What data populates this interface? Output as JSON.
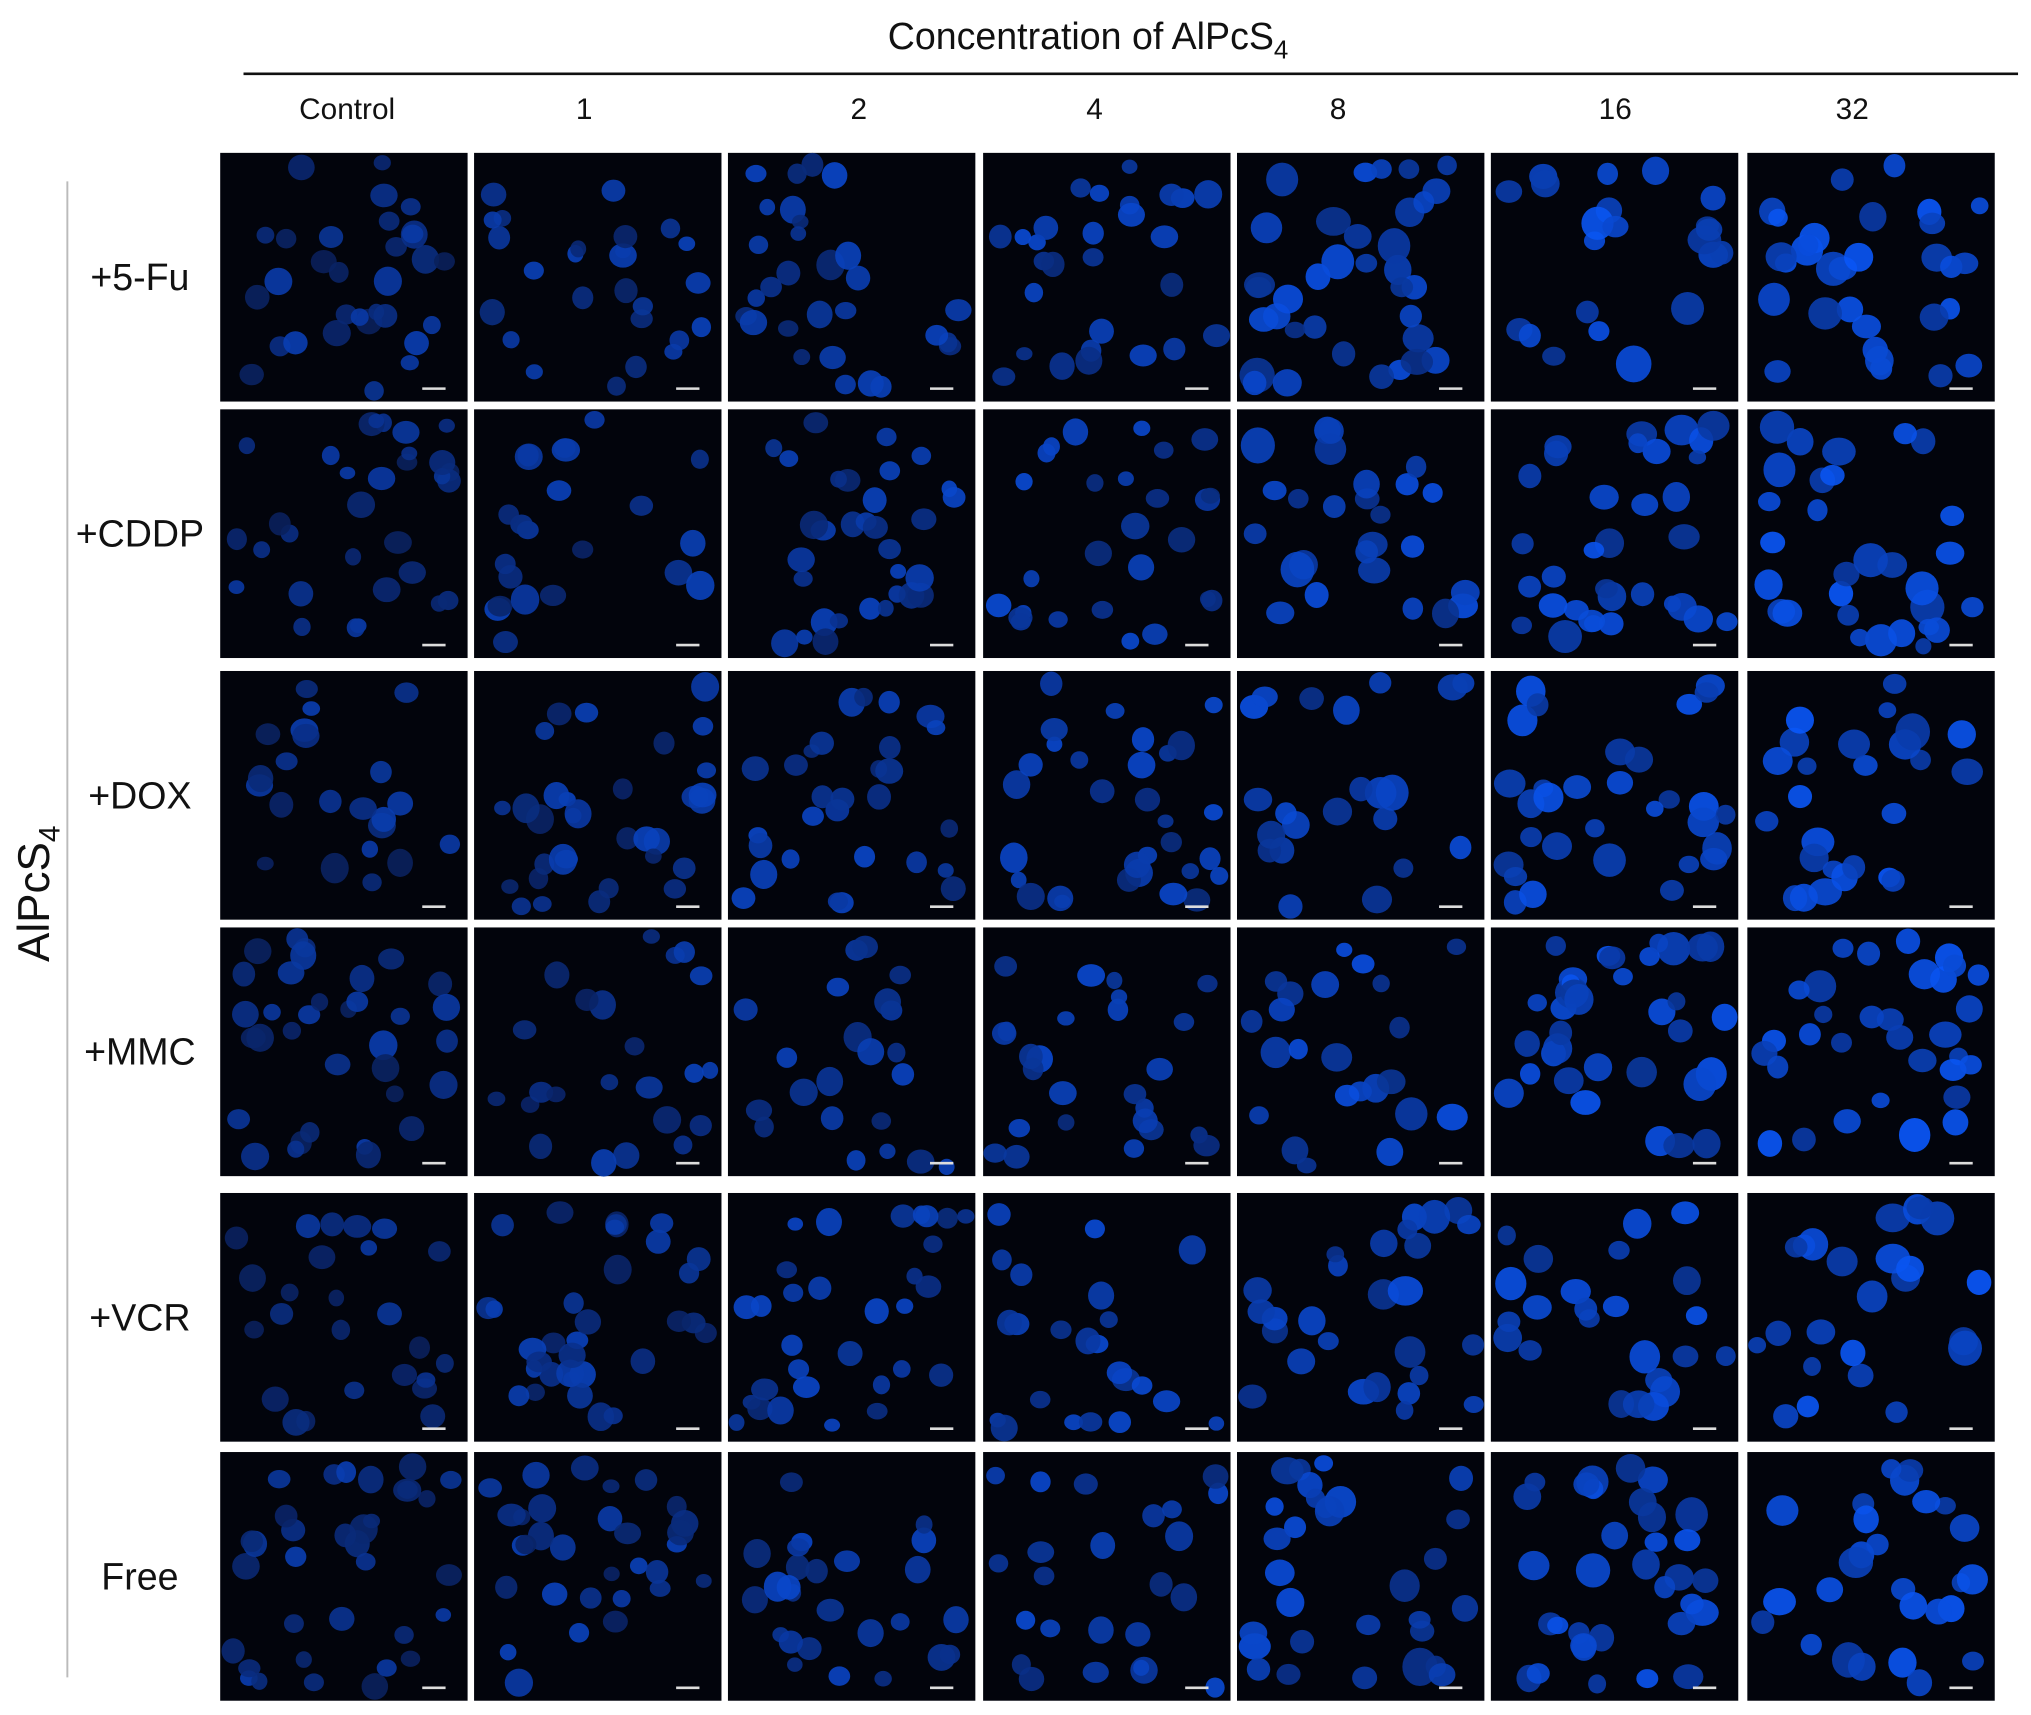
{
  "header": {
    "title": {
      "text": "Concentration of AlPcS",
      "subscript": "4"
    },
    "columns": [
      "Control",
      "1",
      "2",
      "4",
      "8",
      "16",
      "32"
    ]
  },
  "y_axis": {
    "text": "AlPcS",
    "subscript": "4"
  },
  "rows": [
    "+5-Fu",
    "+CDDP",
    "+DOX",
    "+MMC",
    "+VCR",
    "Free"
  ]
}
